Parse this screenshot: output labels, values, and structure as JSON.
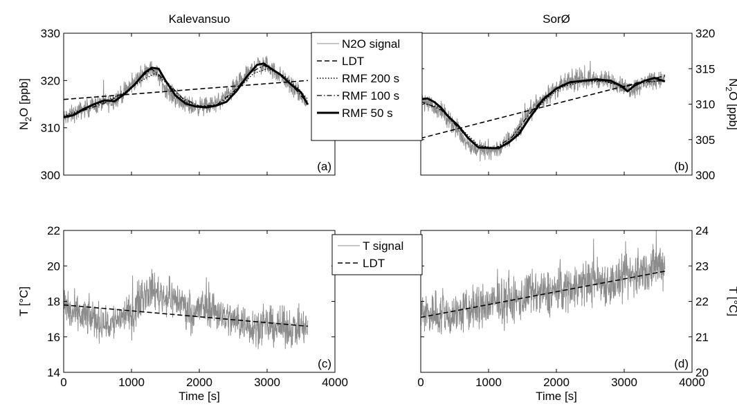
{
  "figure": {
    "legend_top": [
      "N2O signal",
      "LDT",
      "RMF 200 s",
      "RMF 100 s",
      "RMF 50 s"
    ],
    "legend_bottom": [
      "T signal",
      "LDT"
    ]
  },
  "chart_data": [
    {
      "panel": "(a)",
      "type": "line",
      "title": "Kalevansuo",
      "xlabel": "",
      "ylabel": "N2O [ppb]",
      "xlim": [
        0,
        4000
      ],
      "ylim": [
        300,
        330
      ],
      "yticks": [
        300,
        310,
        320,
        330
      ],
      "y_axis_side": "left",
      "grid": false,
      "series": [
        {
          "name": "N2O signal",
          "noise": 1.6,
          "color": "#8c8c8c",
          "x": [
            0,
            150,
            300,
            500,
            700,
            900,
            1100,
            1250,
            1350,
            1500,
            1700,
            1900,
            2100,
            2300,
            2500,
            2700,
            2850,
            3000,
            3200,
            3400,
            3600
          ],
          "y": [
            312,
            313,
            314,
            315,
            315.5,
            317.5,
            320.5,
            322.5,
            322,
            318.5,
            315.5,
            314.5,
            314.5,
            315.5,
            318,
            321,
            323.5,
            323,
            321,
            318,
            315
          ]
        },
        {
          "name": "LDT",
          "x": [
            0,
            3600
          ],
          "y": [
            316,
            320
          ]
        },
        {
          "name": "RMF 200 s",
          "x": [
            0,
            300,
            600,
            900,
            1150,
            1350,
            1550,
            1800,
            2050,
            2300,
            2550,
            2800,
            3000,
            3250,
            3450,
            3600
          ],
          "y": [
            312.5,
            314,
            315.5,
            317.5,
            320,
            321.5,
            319,
            315.5,
            314.5,
            315,
            318,
            321.5,
            322.5,
            321,
            318.5,
            316
          ]
        },
        {
          "name": "RMF 100 s",
          "x": [
            0,
            300,
            600,
            900,
            1150,
            1300,
            1500,
            1750,
            2000,
            2250,
            2500,
            2750,
            2950,
            3200,
            3400,
            3600
          ],
          "y": [
            312.3,
            313.7,
            315.2,
            317.3,
            320.8,
            322.4,
            320,
            316.3,
            314.6,
            314.8,
            317.6,
            321.6,
            323.2,
            321.3,
            318.4,
            315.2
          ]
        },
        {
          "name": "RMF 50 s",
          "x": [
            0,
            150,
            300,
            450,
            600,
            750,
            900,
            1050,
            1200,
            1300,
            1400,
            1500,
            1650,
            1800,
            1950,
            2100,
            2250,
            2400,
            2550,
            2700,
            2850,
            2950,
            3050,
            3200,
            3350,
            3500,
            3600
          ],
          "y": [
            312.2,
            312.7,
            314,
            315,
            315.8,
            315.6,
            317.2,
            319.2,
            321.7,
            322.7,
            322.5,
            320,
            316.8,
            315.1,
            314.5,
            314.3,
            314.7,
            315.5,
            317.8,
            320.8,
            323.3,
            323.6,
            322.6,
            321.2,
            319.2,
            317.5,
            314.9
          ]
        }
      ]
    },
    {
      "panel": "(b)",
      "type": "line",
      "title": "SorØ",
      "xlabel": "",
      "ylabel": "N2O [ppb]",
      "xlim": [
        0,
        4000
      ],
      "ylim": [
        300,
        320
      ],
      "yticks": [
        300,
        305,
        310,
        315,
        320
      ],
      "y_axis_side": "right",
      "grid": false,
      "series": [
        {
          "name": "N2O signal",
          "noise": 1.1,
          "color": "#8c8c8c",
          "x": [
            0,
            150,
            300,
            450,
            600,
            750,
            900,
            1050,
            1200,
            1400,
            1650,
            1900,
            2150,
            2400,
            2650,
            2900,
            3050,
            3200,
            3400,
            3600
          ],
          "y": [
            310.5,
            310,
            309,
            307.5,
            305.5,
            304,
            303.5,
            303.5,
            304,
            306,
            309.5,
            311.5,
            313,
            313.5,
            313.5,
            313,
            312,
            312.5,
            313.5,
            313.5
          ]
        },
        {
          "name": "LDT",
          "x": [
            0,
            3600
          ],
          "y": [
            305.2,
            314
          ]
        },
        {
          "name": "RMF 200 s",
          "x": [
            0,
            300,
            600,
            850,
            1100,
            1350,
            1600,
            1850,
            2100,
            2400,
            2700,
            3000,
            3300,
            3600
          ],
          "y": [
            310.2,
            309.5,
            306.5,
            304.2,
            303.8,
            305,
            308,
            310.8,
            312.5,
            313.2,
            313.2,
            312.5,
            313,
            313.4
          ]
        },
        {
          "name": "RMF 100 s",
          "x": [
            0,
            300,
            600,
            850,
            1100,
            1350,
            1600,
            1850,
            2100,
            2400,
            2700,
            3000,
            3300,
            3600
          ],
          "y": [
            310.4,
            309.2,
            306.2,
            304,
            303.8,
            305.4,
            308.6,
            311.2,
            312.8,
            313.3,
            313.3,
            312.4,
            313.2,
            313.3
          ]
        },
        {
          "name": "RMF 50 s",
          "x": [
            0,
            100,
            200,
            300,
            400,
            550,
            700,
            850,
            1000,
            1150,
            1300,
            1450,
            1600,
            1800,
            2000,
            2200,
            2400,
            2600,
            2800,
            2950,
            3050,
            3150,
            3300,
            3450,
            3600
          ],
          "y": [
            310.7,
            310.8,
            310.3,
            309.5,
            308.3,
            307,
            305.2,
            303.9,
            303.8,
            303.8,
            304.6,
            305.8,
            308,
            310.6,
            312.2,
            313.1,
            313.3,
            313.5,
            313.3,
            312.6,
            311.8,
            312.6,
            313.3,
            313.7,
            313.2
          ]
        }
      ]
    },
    {
      "panel": "(c)",
      "type": "line",
      "title": "",
      "xlabel": "Time [s]",
      "ylabel": "T [°C]",
      "xlim": [
        0,
        4000
      ],
      "ylim": [
        14,
        22
      ],
      "yticks": [
        14,
        16,
        18,
        20,
        22
      ],
      "xticks": [
        0,
        1000,
        2000,
        3000,
        4000
      ],
      "y_axis_side": "left",
      "grid": false,
      "series": [
        {
          "name": "T signal",
          "noise": 0.9,
          "color": "#8c8c8c",
          "x": [
            0,
            100,
            250,
            400,
            550,
            700,
            850,
            1000,
            1150,
            1300,
            1450,
            1600,
            1750,
            1900,
            2050,
            2200,
            2350,
            2500,
            2650,
            2800,
            2950,
            3100,
            3300,
            3450,
            3600
          ],
          "y": [
            18,
            17.3,
            17.2,
            17.1,
            16.8,
            16.7,
            17.2,
            17.2,
            18.3,
            18.7,
            18.3,
            18.2,
            17.9,
            17.3,
            17.7,
            17.6,
            17.2,
            16.9,
            16.8,
            16.6,
            16.6,
            16.6,
            16.5,
            16.5,
            16.5
          ]
        },
        {
          "name": "LDT",
          "x": [
            0,
            3600
          ],
          "y": [
            17.8,
            16.6
          ]
        }
      ]
    },
    {
      "panel": "(d)",
      "type": "line",
      "title": "",
      "xlabel": "Time [s]",
      "ylabel": "T [°C]",
      "xlim": [
        0,
        4000
      ],
      "ylim": [
        20,
        24
      ],
      "yticks": [
        20,
        21,
        22,
        23,
        24
      ],
      "xticks": [
        0,
        1000,
        2000,
        3000,
        4000
      ],
      "y_axis_side": "right",
      "grid": false,
      "series": [
        {
          "name": "T signal",
          "noise": 0.55,
          "color": "#8c8c8c",
          "x": [
            0,
            200,
            400,
            600,
            800,
            1000,
            1200,
            1400,
            1600,
            1800,
            2000,
            2200,
            2400,
            2600,
            2800,
            3000,
            3200,
            3400,
            3600
          ],
          "y": [
            21.6,
            21.7,
            21.6,
            21.7,
            21.8,
            21.9,
            22,
            22,
            22.2,
            22.2,
            22.3,
            22.4,
            22.5,
            22.6,
            22.5,
            22.6,
            22.8,
            22.9,
            23.1
          ]
        },
        {
          "name": "LDT",
          "x": [
            0,
            3600
          ],
          "y": [
            21.55,
            22.85
          ]
        }
      ]
    }
  ]
}
